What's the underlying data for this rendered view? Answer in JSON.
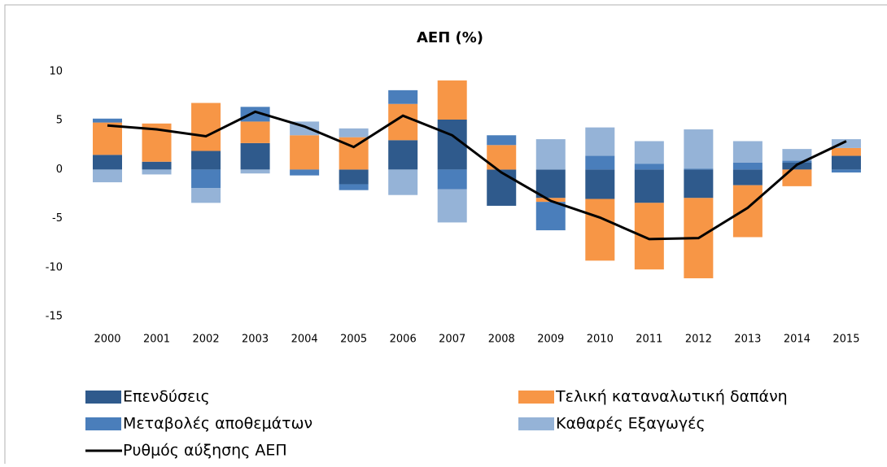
{
  "chart_data": {
    "type": "bar",
    "stacked": true,
    "title": "ΑΕΠ (%)",
    "categories": [
      "2000",
      "2001",
      "2002",
      "2003",
      "2004",
      "2005",
      "2006",
      "2007",
      "2008",
      "2009",
      "2010",
      "2011",
      "2012",
      "2013",
      "2014",
      "2015"
    ],
    "series": [
      {
        "name": "Επενδύσεις",
        "color": "#2f5a8c",
        "values": [
          1.5,
          0.8,
          1.9,
          2.7,
          0,
          -1.5,
          3.0,
          5.1,
          -3.7,
          -2.9,
          -3.0,
          -3.4,
          -2.9,
          -1.6,
          0.7,
          1.4
        ]
      },
      {
        "name": "Τελική καταναλωτική δαπάνη",
        "color": "#f79646",
        "values": [
          3.3,
          3.9,
          4.9,
          2.2,
          3.5,
          3.3,
          3.7,
          4.0,
          2.5,
          -0.4,
          -6.3,
          -6.8,
          -8.2,
          -5.3,
          -1.7,
          0.8
        ]
      },
      {
        "name": "Μεταβολές αποθεμάτων",
        "color": "#4a7ebb",
        "values": [
          0.4,
          0,
          -1.9,
          1.5,
          -0.6,
          -0.6,
          1.4,
          -2.0,
          1.0,
          -2.9,
          1.4,
          0.6,
          0.1,
          0.7,
          0.2,
          -0.3
        ]
      },
      {
        "name": "Καθαρές Εξαγωγές",
        "color": "#95b3d7",
        "values": [
          -1.3,
          -0.5,
          -1.5,
          -0.4,
          1.4,
          0.9,
          -2.6,
          -3.4,
          0,
          3.1,
          2.9,
          2.3,
          4.0,
          2.2,
          1.2,
          0.9
        ]
      },
      {
        "name": "Ρυθμός αύξησης ΑΕΠ",
        "type": "line",
        "color": "#000000",
        "values": [
          4.5,
          4.1,
          3.4,
          5.9,
          4.4,
          2.3,
          5.5,
          3.5,
          -0.3,
          -3.2,
          -4.9,
          -7.1,
          -7.0,
          -3.9,
          0.5,
          2.9
        ]
      }
    ],
    "ylim": [
      -15,
      10
    ],
    "yticks": [
      -15,
      -10,
      -5,
      0,
      5,
      10
    ],
    "grid": false
  }
}
